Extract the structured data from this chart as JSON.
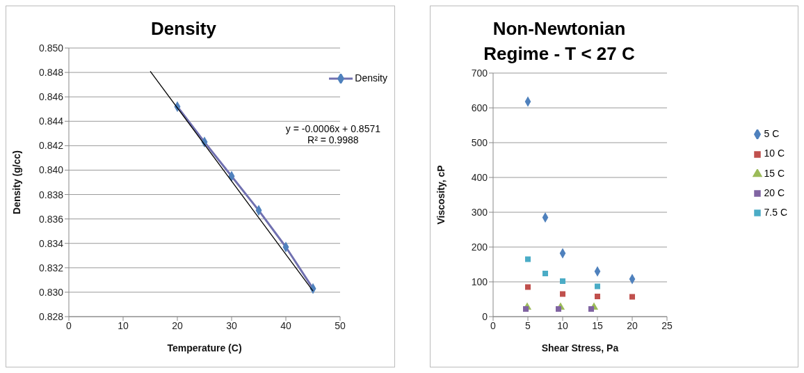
{
  "chart_data": [
    {
      "type": "line",
      "title": "Density",
      "xlabel": "Temperature (C)",
      "ylabel": "Density (g/cc)",
      "xlim": [
        0,
        50
      ],
      "xticks": [
        0,
        10,
        20,
        30,
        40,
        50
      ],
      "ylim": [
        0.828,
        0.85
      ],
      "yticks": [
        {
          "value": 0.828,
          "label": "0.828"
        },
        {
          "value": 0.83,
          "label": "0.830"
        },
        {
          "value": 0.832,
          "label": "0.832"
        },
        {
          "value": 0.834,
          "label": "0.834"
        },
        {
          "value": 0.836,
          "label": "0.836"
        },
        {
          "value": 0.838,
          "label": "0.838"
        },
        {
          "value": 0.84,
          "label": "0.840"
        },
        {
          "value": 0.842,
          "label": "0.842"
        },
        {
          "value": 0.844,
          "label": "0.844"
        },
        {
          "value": 0.846,
          "label": "0.846"
        },
        {
          "value": 0.848,
          "label": "0.848"
        },
        {
          "value": 0.85,
          "label": "0.850"
        }
      ],
      "grid": "y",
      "legend": "top right",
      "series": [
        {
          "name": "Density",
          "type": "line",
          "color": "#4f81bd",
          "marker": "diamond",
          "x": [
            20,
            25,
            30,
            35,
            40,
            45
          ],
          "values": [
            0.8452,
            0.8423,
            0.8395,
            0.8367,
            0.8337,
            0.8303
          ]
        },
        {
          "type": "line",
          "color": "#000000",
          "marker": "none",
          "x": [
            15,
            45
          ],
          "values": [
            0.8481,
            0.8301
          ]
        }
      ],
      "annotations": [
        "y = -0.0006x + 0.8571",
        "R² = 0.9988"
      ]
    },
    {
      "type": "scatter",
      "title": "Non-Newtonian Regime - T < 27 C",
      "xlabel": "Shear Stress, Pa",
      "ylabel": "Viscosity, cP",
      "xlim": [
        0,
        25
      ],
      "xticks": [
        0,
        5,
        10,
        15,
        20,
        25
      ],
      "ylim": [
        0,
        700
      ],
      "yticks": [
        0,
        100,
        200,
        300,
        400,
        500,
        600,
        700
      ],
      "grid": "y",
      "legend": "right",
      "series": [
        {
          "name": "5 C",
          "color": "#4f81bd",
          "marker": "diamond",
          "x": [
            5,
            7.5,
            10,
            15,
            20
          ],
          "values": [
            618,
            285,
            182,
            130,
            108
          ]
        },
        {
          "name": "10 C",
          "color": "#c0504d",
          "marker": "square",
          "x": [
            5,
            10,
            15,
            20
          ],
          "values": [
            85,
            65,
            58,
            57
          ]
        },
        {
          "name": "15 C",
          "color": "#9bbb59",
          "marker": "triangle",
          "x": [
            4.9,
            9.7,
            14.5
          ],
          "values": [
            27,
            27,
            27
          ]
        },
        {
          "name": "20 C",
          "color": "#8064a2",
          "marker": "square",
          "x": [
            4.7,
            9.4,
            14.1
          ],
          "values": [
            22,
            22,
            22
          ]
        },
        {
          "name": "7.5 C",
          "color": "#4bacc6",
          "marker": "square",
          "x": [
            5,
            7.5,
            10,
            15
          ],
          "values": [
            165,
            124,
            102,
            87
          ]
        }
      ]
    }
  ]
}
